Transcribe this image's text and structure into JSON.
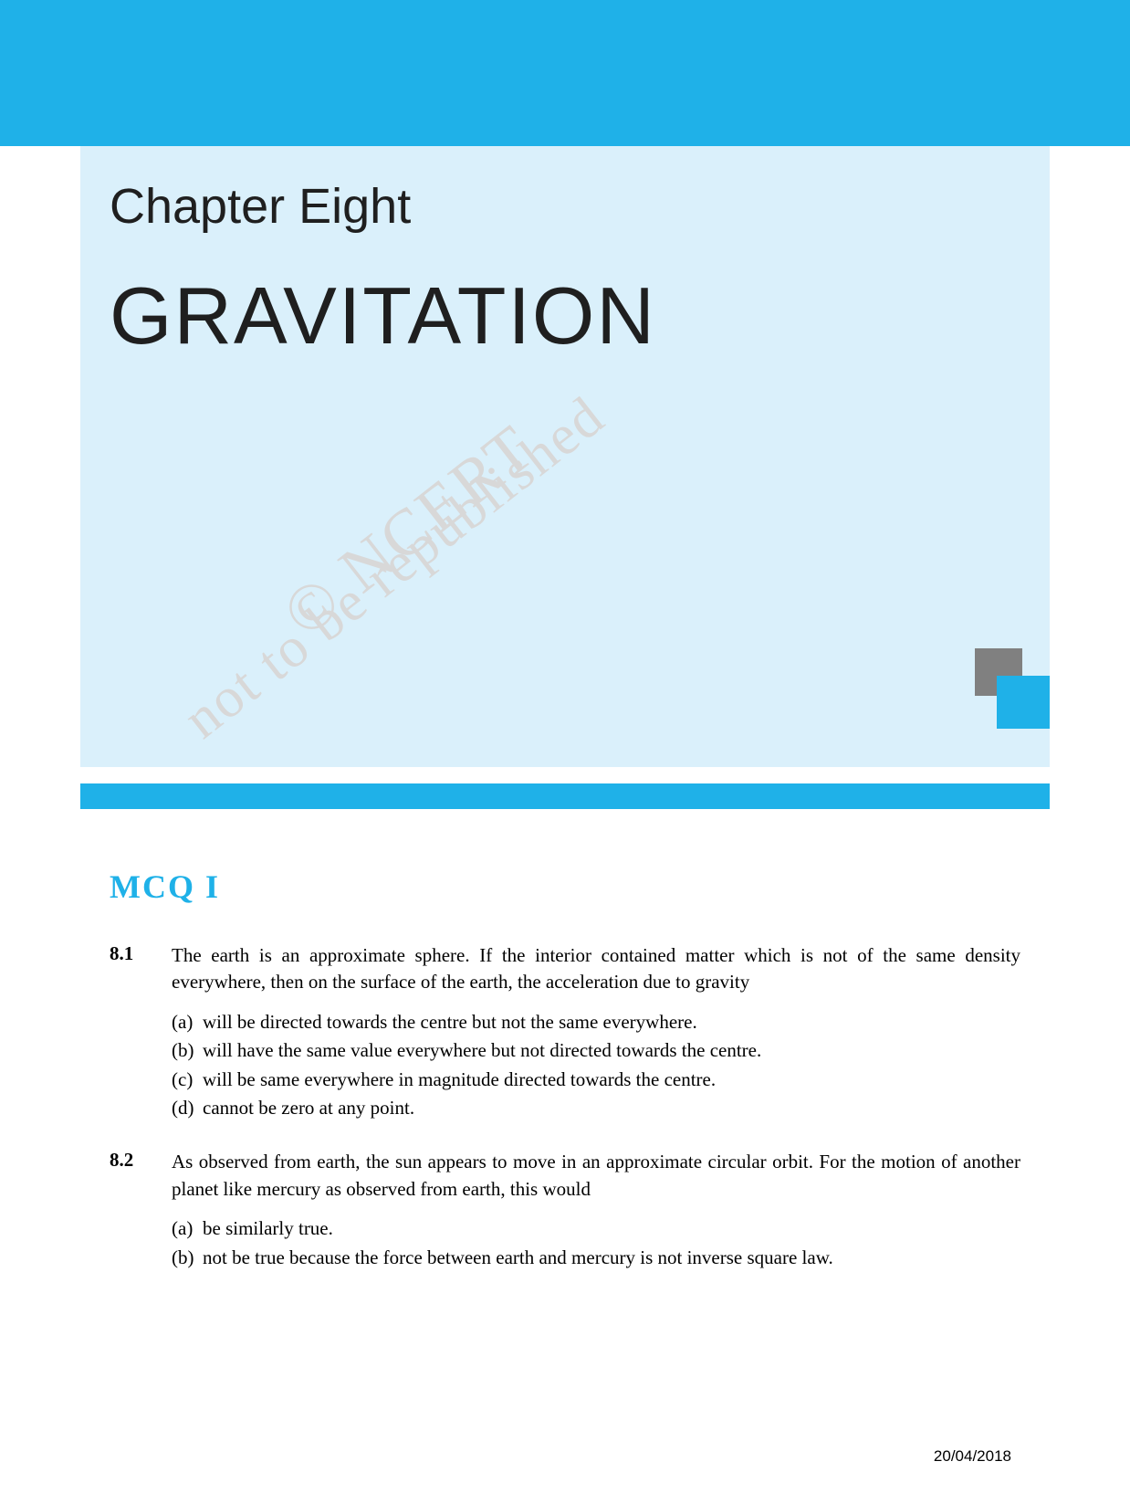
{
  "colors": {
    "primary_blue": "#1fb1e8",
    "light_blue_bg": "#daf0fb",
    "gray_square": "#808080",
    "watermark_gray": "#d8d8d8",
    "text_black": "#000000",
    "heading_dark": "#1f1f1f"
  },
  "chapter": {
    "label": "Chapter Eight",
    "title": "GRAVITATION"
  },
  "watermarks": {
    "ncert": "© NCERT",
    "republished": "not to be republished"
  },
  "section": {
    "heading": "MCQ I"
  },
  "questions": [
    {
      "number": "8.1",
      "text": "The earth is an approximate sphere. If the interior contained matter which is not of the same density everywhere, then on the surface of the earth, the acceleration due to gravity",
      "options": [
        {
          "label": "(a)",
          "text": "will be directed towards the centre but not the same everywhere."
        },
        {
          "label": "(b)",
          "text": "will have the same value everywhere but not directed towards the centre."
        },
        {
          "label": "(c)",
          "text": "will be same everywhere in magnitude directed towards the centre."
        },
        {
          "label": "(d)",
          "text": "cannot be zero at any point."
        }
      ]
    },
    {
      "number": "8.2",
      "text": "As observed from earth, the sun appears to move in an approximate circular orbit. For the motion of another planet like mercury as observed from earth, this would",
      "options": [
        {
          "label": "(a)",
          "text": "be similarly true."
        },
        {
          "label": "(b)",
          "text": "not be true because the force between earth and mercury is not inverse square law."
        }
      ]
    }
  ],
  "footer": {
    "date": "20/04/2018"
  }
}
